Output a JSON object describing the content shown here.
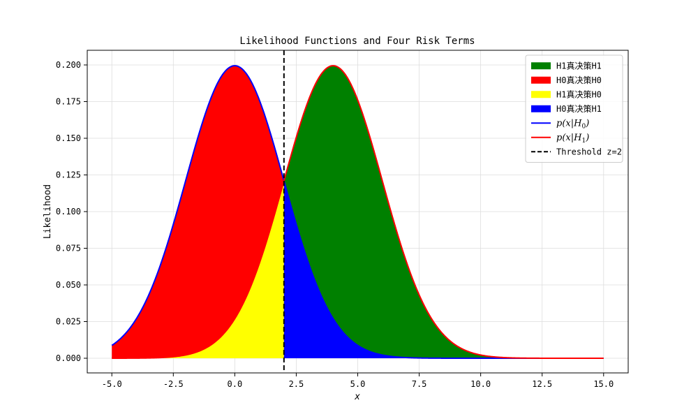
{
  "chart_data": {
    "type": "area",
    "title": "Likelihood Functions and Four Risk Terms",
    "xlabel": "x",
    "ylabel": "Likelihood",
    "xlim": [
      -6,
      16
    ],
    "ylim": [
      -0.01,
      0.21
    ],
    "x_ticks": [
      -5.0,
      -2.5,
      0.0,
      2.5,
      5.0,
      7.5,
      10.0,
      12.5,
      15.0
    ],
    "x_tick_labels": [
      "-5.0",
      "-2.5",
      "0.0",
      "2.5",
      "5.0",
      "7.5",
      "10.0",
      "12.5",
      "15.0"
    ],
    "y_ticks": [
      0.0,
      0.025,
      0.05,
      0.075,
      0.1,
      0.125,
      0.15,
      0.175,
      0.2
    ],
    "y_tick_labels": [
      "0.000",
      "0.025",
      "0.050",
      "0.075",
      "0.100",
      "0.125",
      "0.150",
      "0.175",
      "0.200"
    ],
    "grid": true,
    "x_range": [
      -5,
      15
    ],
    "threshold": 2,
    "curves": [
      {
        "name": "p(x|H0)",
        "mean": 0,
        "std": 2,
        "color": "#0000ff"
      },
      {
        "name": "p(x|H1)",
        "mean": 4,
        "std": 2,
        "color": "#ff0000"
      }
    ],
    "fills": [
      {
        "name": "H1真决策H1",
        "curve": "p(x|H1)",
        "region": "x >= 2",
        "color": "#008000"
      },
      {
        "name": "H0真决策H0",
        "curve": "p(x|H0)",
        "region": "x <= 2",
        "color": "#ff0000"
      },
      {
        "name": "H1真决策H0",
        "curve": "p(x|H1)",
        "region": "x <= 2",
        "color": "#ffff00"
      },
      {
        "name": "H0真决策H1",
        "curve": "p(x|H0)",
        "region": "x >= 2",
        "color": "#0000ff"
      }
    ],
    "legend": {
      "placement": "upper-right",
      "entries": [
        {
          "kind": "patch",
          "label": "H1真决策H1",
          "color": "#008000"
        },
        {
          "kind": "patch",
          "label": "H0真决策H0",
          "color": "#ff0000"
        },
        {
          "kind": "patch",
          "label": "H1真决策H0",
          "color": "#ffff00"
        },
        {
          "kind": "patch",
          "label": "H0真决策H1",
          "color": "#0000ff"
        },
        {
          "kind": "line",
          "label": "p(x|H0)",
          "math": [
            "p(x|H",
            "0",
            ")"
          ],
          "color": "#0000ff"
        },
        {
          "kind": "line",
          "label": "p(x|H1)",
          "math": [
            "p(x|H",
            "1",
            ")"
          ],
          "color": "#ff0000"
        },
        {
          "kind": "dashed",
          "label": "Threshold z=2",
          "color": "#000000"
        }
      ]
    }
  }
}
